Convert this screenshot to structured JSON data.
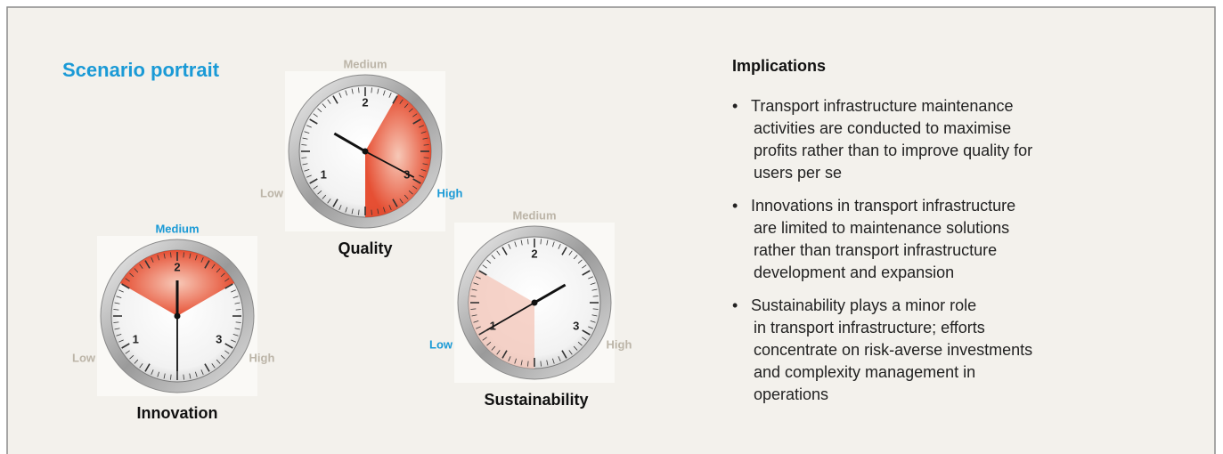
{
  "title": "Scenario portrait",
  "gauges": [
    {
      "name": "Quality",
      "levels": [
        "Low",
        "Medium",
        "High"
      ],
      "selected": "High",
      "dial": [
        "1",
        "2",
        "3"
      ]
    },
    {
      "name": "Innovation",
      "levels": [
        "Low",
        "Medium",
        "High"
      ],
      "selected": "Medium",
      "dial": [
        "1",
        "2",
        "3"
      ]
    },
    {
      "name": "Sustainability",
      "levels": [
        "Low",
        "Medium",
        "High"
      ],
      "selected": "Low",
      "dial": [
        "1",
        "2",
        "3"
      ]
    }
  ],
  "implications": {
    "heading": "Implications",
    "bullet": "•",
    "items": [
      [
        "Transport infrastructure maintenance",
        "activities are conducted to maximise",
        "profits rather than to improve quality for",
        "users per se"
      ],
      [
        "Innovations in transport infrastructure",
        "are limited to maintenance solutions",
        "rather than transport infrastructure",
        "development and expansion"
      ],
      [
        "Sustainability plays a minor role",
        "in transport infrastructure; efforts",
        "concentrate on risk-averse investments",
        "and complexity management in",
        "operations"
      ]
    ]
  }
}
